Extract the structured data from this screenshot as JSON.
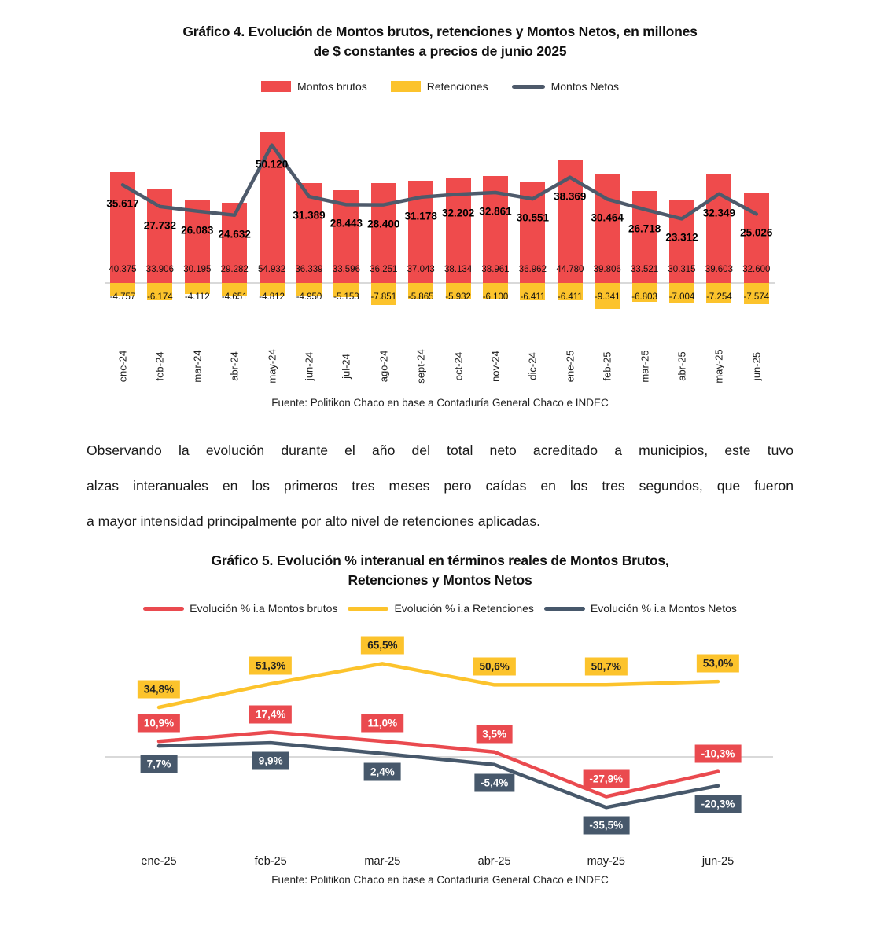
{
  "chart4": {
    "title_line1": "Gráfico 4. Evolución de Montos brutos, retenciones y Montos Netos, en millones",
    "title_line2": "de $ constantes a precios de junio 2025",
    "source": "Fuente: Politikon Chaco en base a Contaduría General Chaco e INDEC"
  },
  "paragraph": {
    "lines": [
      "Observando la evolución durante el año del total neto acreditado a municipios, este tuvo",
      "alzas interanuales en los primeros tres meses pero caídas en los tres segundos, que fueron",
      "a mayor intensidad principalmente por alto nivel de retenciones aplicadas."
    ]
  },
  "chart5": {
    "title_line1": "Gráfico 5. Evolución % interanual en términos reales de Montos Brutos,",
    "title_line2": "Retenciones y Montos Netos",
    "source": "Fuente: Politikon Chaco en base a Contaduría General Chaco e INDEC"
  },
  "colors": {
    "red": "#EF4B4C",
    "yellow": "#FCC32C",
    "slate": "#4E5A6B",
    "slate_box": "#47586B",
    "zero_line": "#D9D9D9"
  },
  "chart_data": [
    {
      "type": "bar",
      "title": "Gráfico 4. Evolución de Montos brutos, retenciones y Montos Netos, en millones de $ constantes a precios de junio 2025",
      "categories": [
        "ene-24",
        "feb-24",
        "mar-24",
        "abr-24",
        "may-24",
        "jun-24",
        "jul-24",
        "ago-24",
        "sept-24",
        "oct-24",
        "nov-24",
        "dic-24",
        "ene-25",
        "feb-25",
        "mar-25",
        "abr-25",
        "may-25",
        "jun-25"
      ],
      "ylim": [
        -10000,
        60000
      ],
      "grid": false,
      "legend_position": "top",
      "series": [
        {
          "name": "Montos brutos",
          "type": "bar",
          "color": "#EF4B4C",
          "values": [
            40375,
            33906,
            30195,
            29282,
            54932,
            36339,
            33596,
            36251,
            37043,
            38134,
            38961,
            36962,
            44780,
            39806,
            33521,
            30315,
            39603,
            32600
          ],
          "labels": [
            "40.375",
            "33.906",
            "30.195",
            "29.282",
            "54.932",
            "36.339",
            "33.596",
            "36.251",
            "37.043",
            "38.134",
            "38.961",
            "36.962",
            "44.780",
            "39.806",
            "33.521",
            "30.315",
            "39.603",
            "32.600"
          ]
        },
        {
          "name": "Retenciones",
          "type": "bar",
          "color": "#FCC32C",
          "values": [
            -4757,
            -6174,
            -4112,
            -4651,
            -4812,
            -4950,
            -5153,
            -7851,
            -5865,
            -5932,
            -6100,
            -6411,
            -6411,
            -9341,
            -6803,
            -7004,
            -7254,
            -7574
          ],
          "labels": [
            "-4.757",
            "-6.174",
            "-4.112",
            "-4.651",
            "-4.812",
            "-4.950",
            "-5.153",
            "-7.851",
            "-5.865",
            "-5.932",
            "-6.100",
            "-6.411",
            "-6.411",
            "-9.341",
            "-6.803",
            "-7.004",
            "-7.254",
            "-7.574"
          ]
        },
        {
          "name": "Montos Netos",
          "type": "line",
          "color": "#4E5A6B",
          "values": [
            35617,
            27732,
            26083,
            24632,
            50120,
            31389,
            28443,
            28400,
            31178,
            32202,
            32861,
            30551,
            38369,
            30464,
            26718,
            23312,
            32349,
            25026
          ],
          "labels": [
            "35.617",
            "27.732",
            "26.083",
            "24.632",
            "50.120",
            "31.389",
            "28.443",
            "28.400",
            "31.178",
            "32.202",
            "32.861",
            "30.551",
            "38.369",
            "30.464",
            "26.718",
            "23.312",
            "32.349",
            "25.026"
          ]
        }
      ],
      "source": "Fuente: Politikon Chaco en base a Contaduría General Chaco e INDEC"
    },
    {
      "type": "line",
      "title": "Gráfico 5. Evolución % interanual en términos reales de Montos Brutos, Retenciones y Montos Netos",
      "categories": [
        "ene-25",
        "feb-25",
        "mar-25",
        "abr-25",
        "may-25",
        "jun-25"
      ],
      "ylim": [
        -45,
        75
      ],
      "grid": false,
      "legend_position": "top",
      "series": [
        {
          "name": "Evolución % i.a Montos brutos",
          "type": "line",
          "color": "#EA4A4F",
          "label_text_color": "#ffffff",
          "values": [
            10.9,
            17.4,
            11.0,
            3.5,
            -27.9,
            -10.3
          ],
          "labels": [
            "10,9%",
            "17,4%",
            "11,0%",
            "3,5%",
            "-27,9%",
            "-10,3%"
          ]
        },
        {
          "name": "Evolución % i.a Retenciones",
          "type": "line",
          "color": "#FCC32C",
          "label_text_color": "#222222",
          "values": [
            34.8,
            51.3,
            65.5,
            50.6,
            50.7,
            53.0
          ],
          "labels": [
            "34,8%",
            "51,3%",
            "65,5%",
            "50,6%",
            "50,7%",
            "53,0%"
          ]
        },
        {
          "name": "Evolución % i.a Montos Netos",
          "type": "line",
          "color": "#47586B",
          "label_text_color": "#ffffff",
          "values": [
            7.7,
            9.9,
            2.4,
            -5.4,
            -35.5,
            -20.3
          ],
          "labels": [
            "7,7%",
            "9,9%",
            "2,4%",
            "-5,4%",
            "-35,5%",
            "-20,3%"
          ]
        }
      ],
      "source": "Fuente: Politikon Chaco en base a Contaduría General Chaco e INDEC"
    }
  ]
}
